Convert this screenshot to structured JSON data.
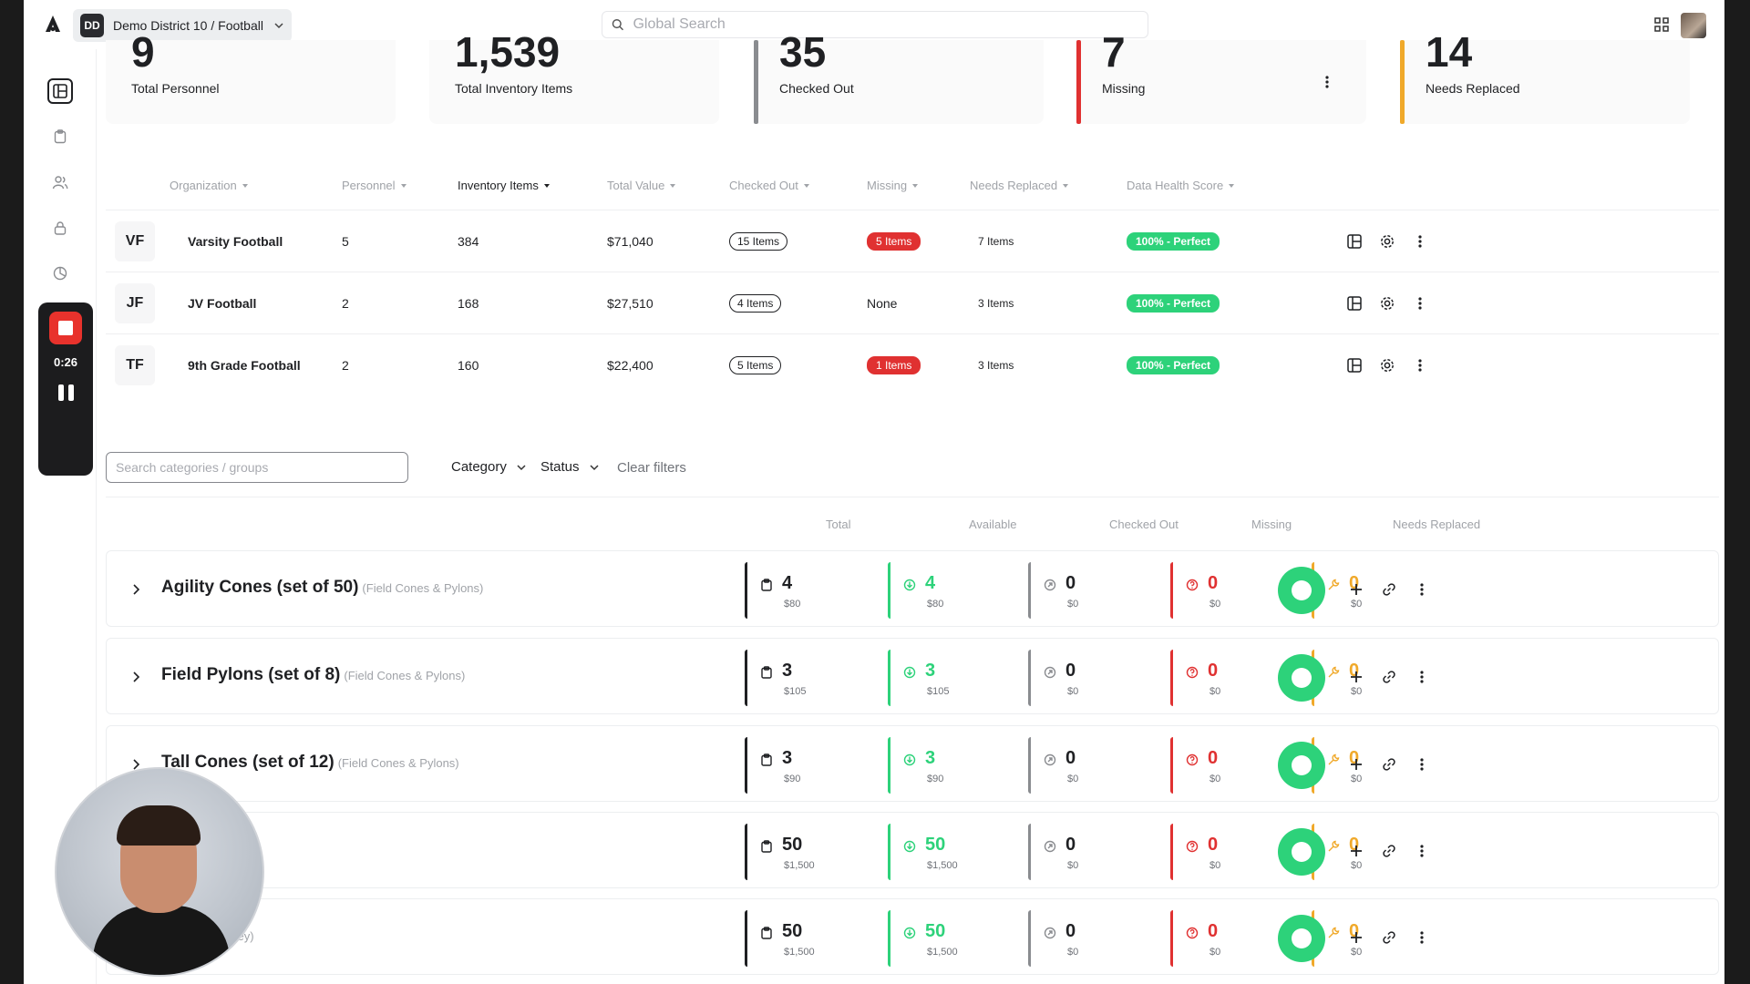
{
  "topbar": {
    "district_badge": "DD",
    "district_label": "Demo District 10 / Football",
    "search_placeholder": "Global Search"
  },
  "recorder": {
    "time": "0:26"
  },
  "stats": [
    {
      "value": "9",
      "label": "Total Personnel",
      "accent": ""
    },
    {
      "value": "1,539",
      "label": "Total Inventory Items",
      "accent": ""
    },
    {
      "value": "35",
      "label": "Checked Out",
      "accent": "#8a8c90"
    },
    {
      "value": "7",
      "label": "Missing",
      "accent": "#e03131"
    },
    {
      "value": "14",
      "label": "Needs Replaced",
      "accent": "#f0a92a"
    }
  ],
  "org_table": {
    "headers": [
      "Organization",
      "Personnel",
      "Inventory Items",
      "Total Value",
      "Checked Out",
      "Missing",
      "Needs Replaced",
      "Data Health Score"
    ],
    "rows": [
      {
        "abbr": "VF",
        "name": "Varsity Football",
        "personnel": "5",
        "inventory": "384",
        "value": "$71,040",
        "checked_out": "15 Items",
        "missing": "5 Items",
        "needs_replaced": "7 Items",
        "health": "100% - Perfect"
      },
      {
        "abbr": "JF",
        "name": "JV Football",
        "personnel": "2",
        "inventory": "168",
        "value": "$27,510",
        "checked_out": "4 Items",
        "missing": "None",
        "needs_replaced": "3 Items",
        "health": "100% - Perfect"
      },
      {
        "abbr": "TF",
        "name": "9th Grade Football",
        "personnel": "2",
        "inventory": "160",
        "value": "$22,400",
        "checked_out": "5 Items",
        "missing": "1 Items",
        "needs_replaced": "3 Items",
        "health": "100% - Perfect"
      }
    ]
  },
  "filters": {
    "search_placeholder": "Search categories / groups",
    "category_label": "Category",
    "status_label": "Status",
    "clear_label": "Clear filters"
  },
  "groups_header": [
    "Total",
    "Available",
    "Checked Out",
    "Missing",
    "Needs Replaced"
  ],
  "groups": [
    {
      "title": "Agility Cones (set of 50)",
      "sub": "(Field Cones & Pylons)",
      "total": "4",
      "total_m": "$80",
      "avail": "4",
      "avail_m": "$80",
      "out": "0",
      "out_m": "$0",
      "missing": "0",
      "missing_m": "$0",
      "repl": "0",
      "repl_m": "$0"
    },
    {
      "title": "Field Pylons (set of 8)",
      "sub": "(Field Cones & Pylons)",
      "total": "3",
      "total_m": "$105",
      "avail": "3",
      "avail_m": "$105",
      "out": "0",
      "out_m": "$0",
      "missing": "0",
      "missing_m": "$0",
      "repl": "0",
      "repl_m": "$0"
    },
    {
      "title": "Tall Cones (set of 12)",
      "sub": "(Field Cones & Pylons)",
      "total": "3",
      "total_m": "$90",
      "avail": "3",
      "avail_m": "$90",
      "out": "0",
      "out_m": "$0",
      "missing": "0",
      "missing_m": "$0",
      "repl": "0",
      "repl_m": "$0"
    },
    {
      "title": "",
      "sub": "ice Jersey)",
      "total": "50",
      "total_m": "$1,500",
      "avail": "50",
      "avail_m": "$1,500",
      "out": "0",
      "out_m": "$0",
      "missing": "0",
      "missing_m": "$0",
      "repl": "0",
      "repl_m": "$0"
    },
    {
      "title": "",
      "sub": "(Practice Jersey)",
      "total": "50",
      "total_m": "$1,500",
      "avail": "50",
      "avail_m": "$1,500",
      "out": "0",
      "out_m": "$0",
      "missing": "0",
      "missing_m": "$0",
      "repl": "0",
      "repl_m": "$0"
    }
  ]
}
